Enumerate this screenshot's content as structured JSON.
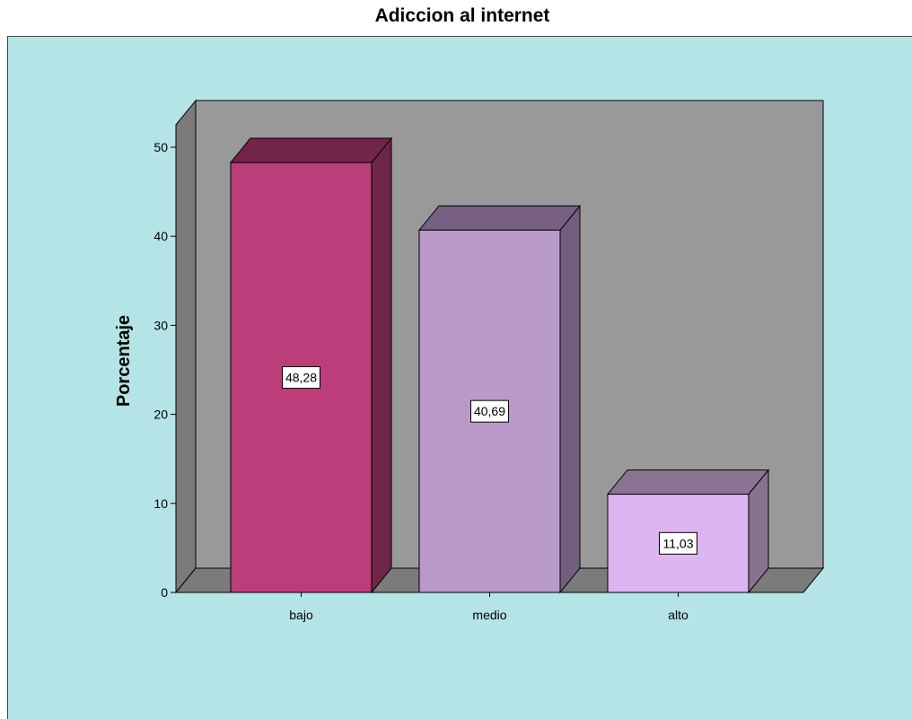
{
  "chart_data": {
    "type": "bar",
    "title": "Adiccion al internet",
    "xlabel": "",
    "ylabel": "Porcentaje",
    "categories": [
      "bajo",
      "medio",
      "alto"
    ],
    "values": [
      48.28,
      40.69,
      11.03
    ],
    "value_labels": [
      "48,28",
      "40,69",
      "11,03"
    ],
    "ylim": [
      0,
      50
    ],
    "yticks": [
      "0",
      "10",
      "20",
      "30",
      "40",
      "50"
    ],
    "bar_colors": [
      "#bb3d7a",
      "#b899c8",
      "#ddb5f0"
    ],
    "bar_side_colors": [
      "#6e2548",
      "#735f7d",
      "#88738f"
    ],
    "bar_top_colors": [
      "#732549",
      "#786082",
      "#8a7492"
    ],
    "background_color": "#b5e4e6",
    "plot_back_color": "#999999",
    "plot_floor_color": "#7b7b7b",
    "grid": false,
    "style": "3d"
  }
}
